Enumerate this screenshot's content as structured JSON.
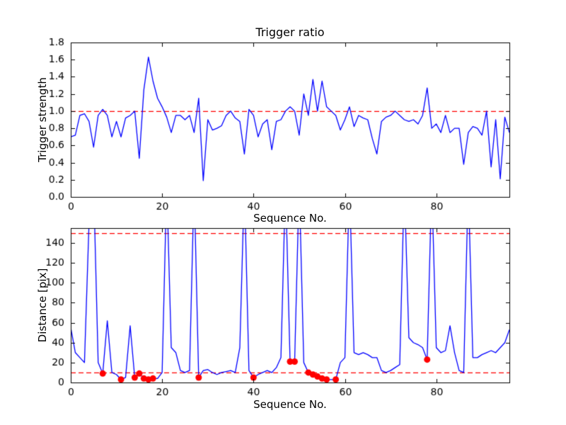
{
  "figure": {
    "background": "#ffffff",
    "line_color": "#0000ff",
    "threshold_color": "#ff0000",
    "marker_color": "#ff0000"
  },
  "chart_data": [
    {
      "type": "line",
      "title": "Trigger ratio",
      "xlabel": "Sequence No.",
      "ylabel": "Trigger strength",
      "xlim": [
        0,
        96
      ],
      "ylim": [
        0.0,
        1.8
      ],
      "xticks": [
        0,
        20,
        40,
        60,
        80
      ],
      "xticklabels": [
        "0",
        "20",
        "40",
        "60",
        "80"
      ],
      "yticks": [
        0.0,
        0.2,
        0.4,
        0.6,
        0.8,
        1.0,
        1.2,
        1.4,
        1.6,
        1.8
      ],
      "yticklabels": [
        "0.0",
        "0.2",
        "0.4",
        "0.6",
        "0.8",
        "1.0",
        "1.2",
        "1.4",
        "1.6",
        "1.8"
      ],
      "thresholds": [
        1.0
      ],
      "grid": false,
      "x": [
        0,
        1,
        2,
        3,
        4,
        5,
        6,
        7,
        8,
        9,
        10,
        11,
        12,
        13,
        14,
        15,
        16,
        17,
        18,
        19,
        20,
        21,
        22,
        23,
        24,
        25,
        26,
        27,
        28,
        29,
        30,
        31,
        32,
        33,
        34,
        35,
        36,
        37,
        38,
        39,
        40,
        41,
        42,
        43,
        44,
        45,
        46,
        47,
        48,
        49,
        50,
        51,
        52,
        53,
        54,
        55,
        56,
        57,
        58,
        59,
        60,
        61,
        62,
        63,
        64,
        65,
        66,
        67,
        68,
        69,
        70,
        71,
        72,
        73,
        74,
        75,
        76,
        77,
        78,
        79,
        80,
        81,
        82,
        83,
        84,
        85,
        86,
        87,
        88,
        89,
        90,
        91,
        92,
        93,
        94,
        95,
        96
      ],
      "y": [
        0.7,
        0.72,
        0.95,
        0.97,
        0.88,
        0.58,
        0.95,
        1.02,
        0.95,
        0.7,
        0.88,
        0.7,
        0.92,
        0.95,
        1.0,
        0.45,
        1.25,
        1.63,
        1.35,
        1.15,
        1.05,
        0.93,
        0.75,
        0.95,
        0.95,
        0.9,
        0.95,
        0.75,
        1.15,
        0.19,
        0.9,
        0.78,
        0.8,
        0.83,
        0.95,
        1.0,
        0.92,
        0.88,
        0.5,
        1.02,
        0.95,
        0.7,
        0.85,
        0.9,
        0.55,
        0.88,
        0.9,
        1.0,
        1.05,
        1.0,
        0.72,
        1.2,
        0.95,
        1.37,
        1.0,
        1.35,
        1.05,
        1.0,
        0.95,
        0.78,
        0.9,
        1.05,
        0.82,
        0.95,
        0.92,
        0.9,
        0.68,
        0.5,
        0.88,
        0.93,
        0.95,
        1.0,
        0.95,
        0.9,
        0.88,
        0.9,
        0.85,
        0.95,
        1.27,
        0.8,
        0.85,
        0.75,
        0.95,
        0.75,
        0.8,
        0.8,
        0.38,
        0.75,
        0.82,
        0.8,
        0.72,
        1.0,
        0.35,
        0.9,
        0.21,
        0.93,
        0.75
      ]
    },
    {
      "type": "line+scatter",
      "title": "",
      "xlabel": "Sequence No.",
      "ylabel": "Distance [pix]",
      "xlim": [
        0,
        96
      ],
      "ylim": [
        0,
        155
      ],
      "xticks": [
        0,
        20,
        40,
        60,
        80
      ],
      "xticklabels": [
        "0",
        "20",
        "40",
        "60",
        "80"
      ],
      "yticks": [
        0,
        20,
        40,
        60,
        80,
        100,
        120,
        140
      ],
      "yticklabels": [
        "0",
        "20",
        "40",
        "60",
        "80",
        "100",
        "120",
        "140"
      ],
      "thresholds": [
        150,
        10
      ],
      "grid": false,
      "x": [
        0,
        1,
        2,
        3,
        4,
        5,
        6,
        7,
        8,
        9,
        10,
        11,
        12,
        13,
        14,
        15,
        16,
        17,
        18,
        19,
        20,
        21,
        22,
        23,
        24,
        25,
        26,
        27,
        28,
        29,
        30,
        31,
        32,
        33,
        34,
        35,
        36,
        37,
        38,
        39,
        40,
        41,
        42,
        43,
        44,
        45,
        46,
        47,
        48,
        49,
        50,
        51,
        52,
        53,
        54,
        55,
        56,
        57,
        58,
        59,
        60,
        61,
        62,
        63,
        64,
        65,
        66,
        67,
        68,
        69,
        70,
        71,
        72,
        73,
        74,
        75,
        76,
        77,
        78,
        79,
        80,
        81,
        82,
        83,
        84,
        85,
        86,
        87,
        88,
        89,
        90,
        91,
        92,
        93,
        94,
        95,
        96
      ],
      "y": [
        55,
        30,
        25,
        20,
        160,
        200,
        20,
        9,
        62,
        10,
        8,
        3,
        5,
        57,
        5,
        9,
        4,
        3,
        4,
        4,
        10,
        200,
        35,
        30,
        12,
        10,
        12,
        200,
        5,
        12,
        13,
        10,
        8,
        10,
        11,
        12,
        10,
        35,
        200,
        12,
        5,
        8,
        10,
        12,
        10,
        15,
        25,
        200,
        21,
        21,
        200,
        20,
        10,
        8,
        6,
        4,
        3,
        3,
        3,
        20,
        25,
        200,
        30,
        28,
        30,
        28,
        25,
        25,
        12,
        10,
        12,
        15,
        18,
        200,
        45,
        40,
        38,
        35,
        23,
        200,
        35,
        30,
        32,
        57,
        30,
        12,
        10,
        200,
        25,
        25,
        28,
        30,
        32,
        30,
        35,
        40,
        53
      ],
      "markers": {
        "x": [
          7,
          11,
          14,
          15,
          16,
          17,
          18,
          28,
          40,
          48,
          49,
          52,
          53,
          54,
          55,
          56,
          58,
          78
        ],
        "y": [
          9,
          3,
          5,
          9,
          4,
          3,
          4,
          5,
          5,
          21,
          21,
          10,
          8,
          6,
          4,
          3,
          3,
          23
        ]
      }
    }
  ]
}
